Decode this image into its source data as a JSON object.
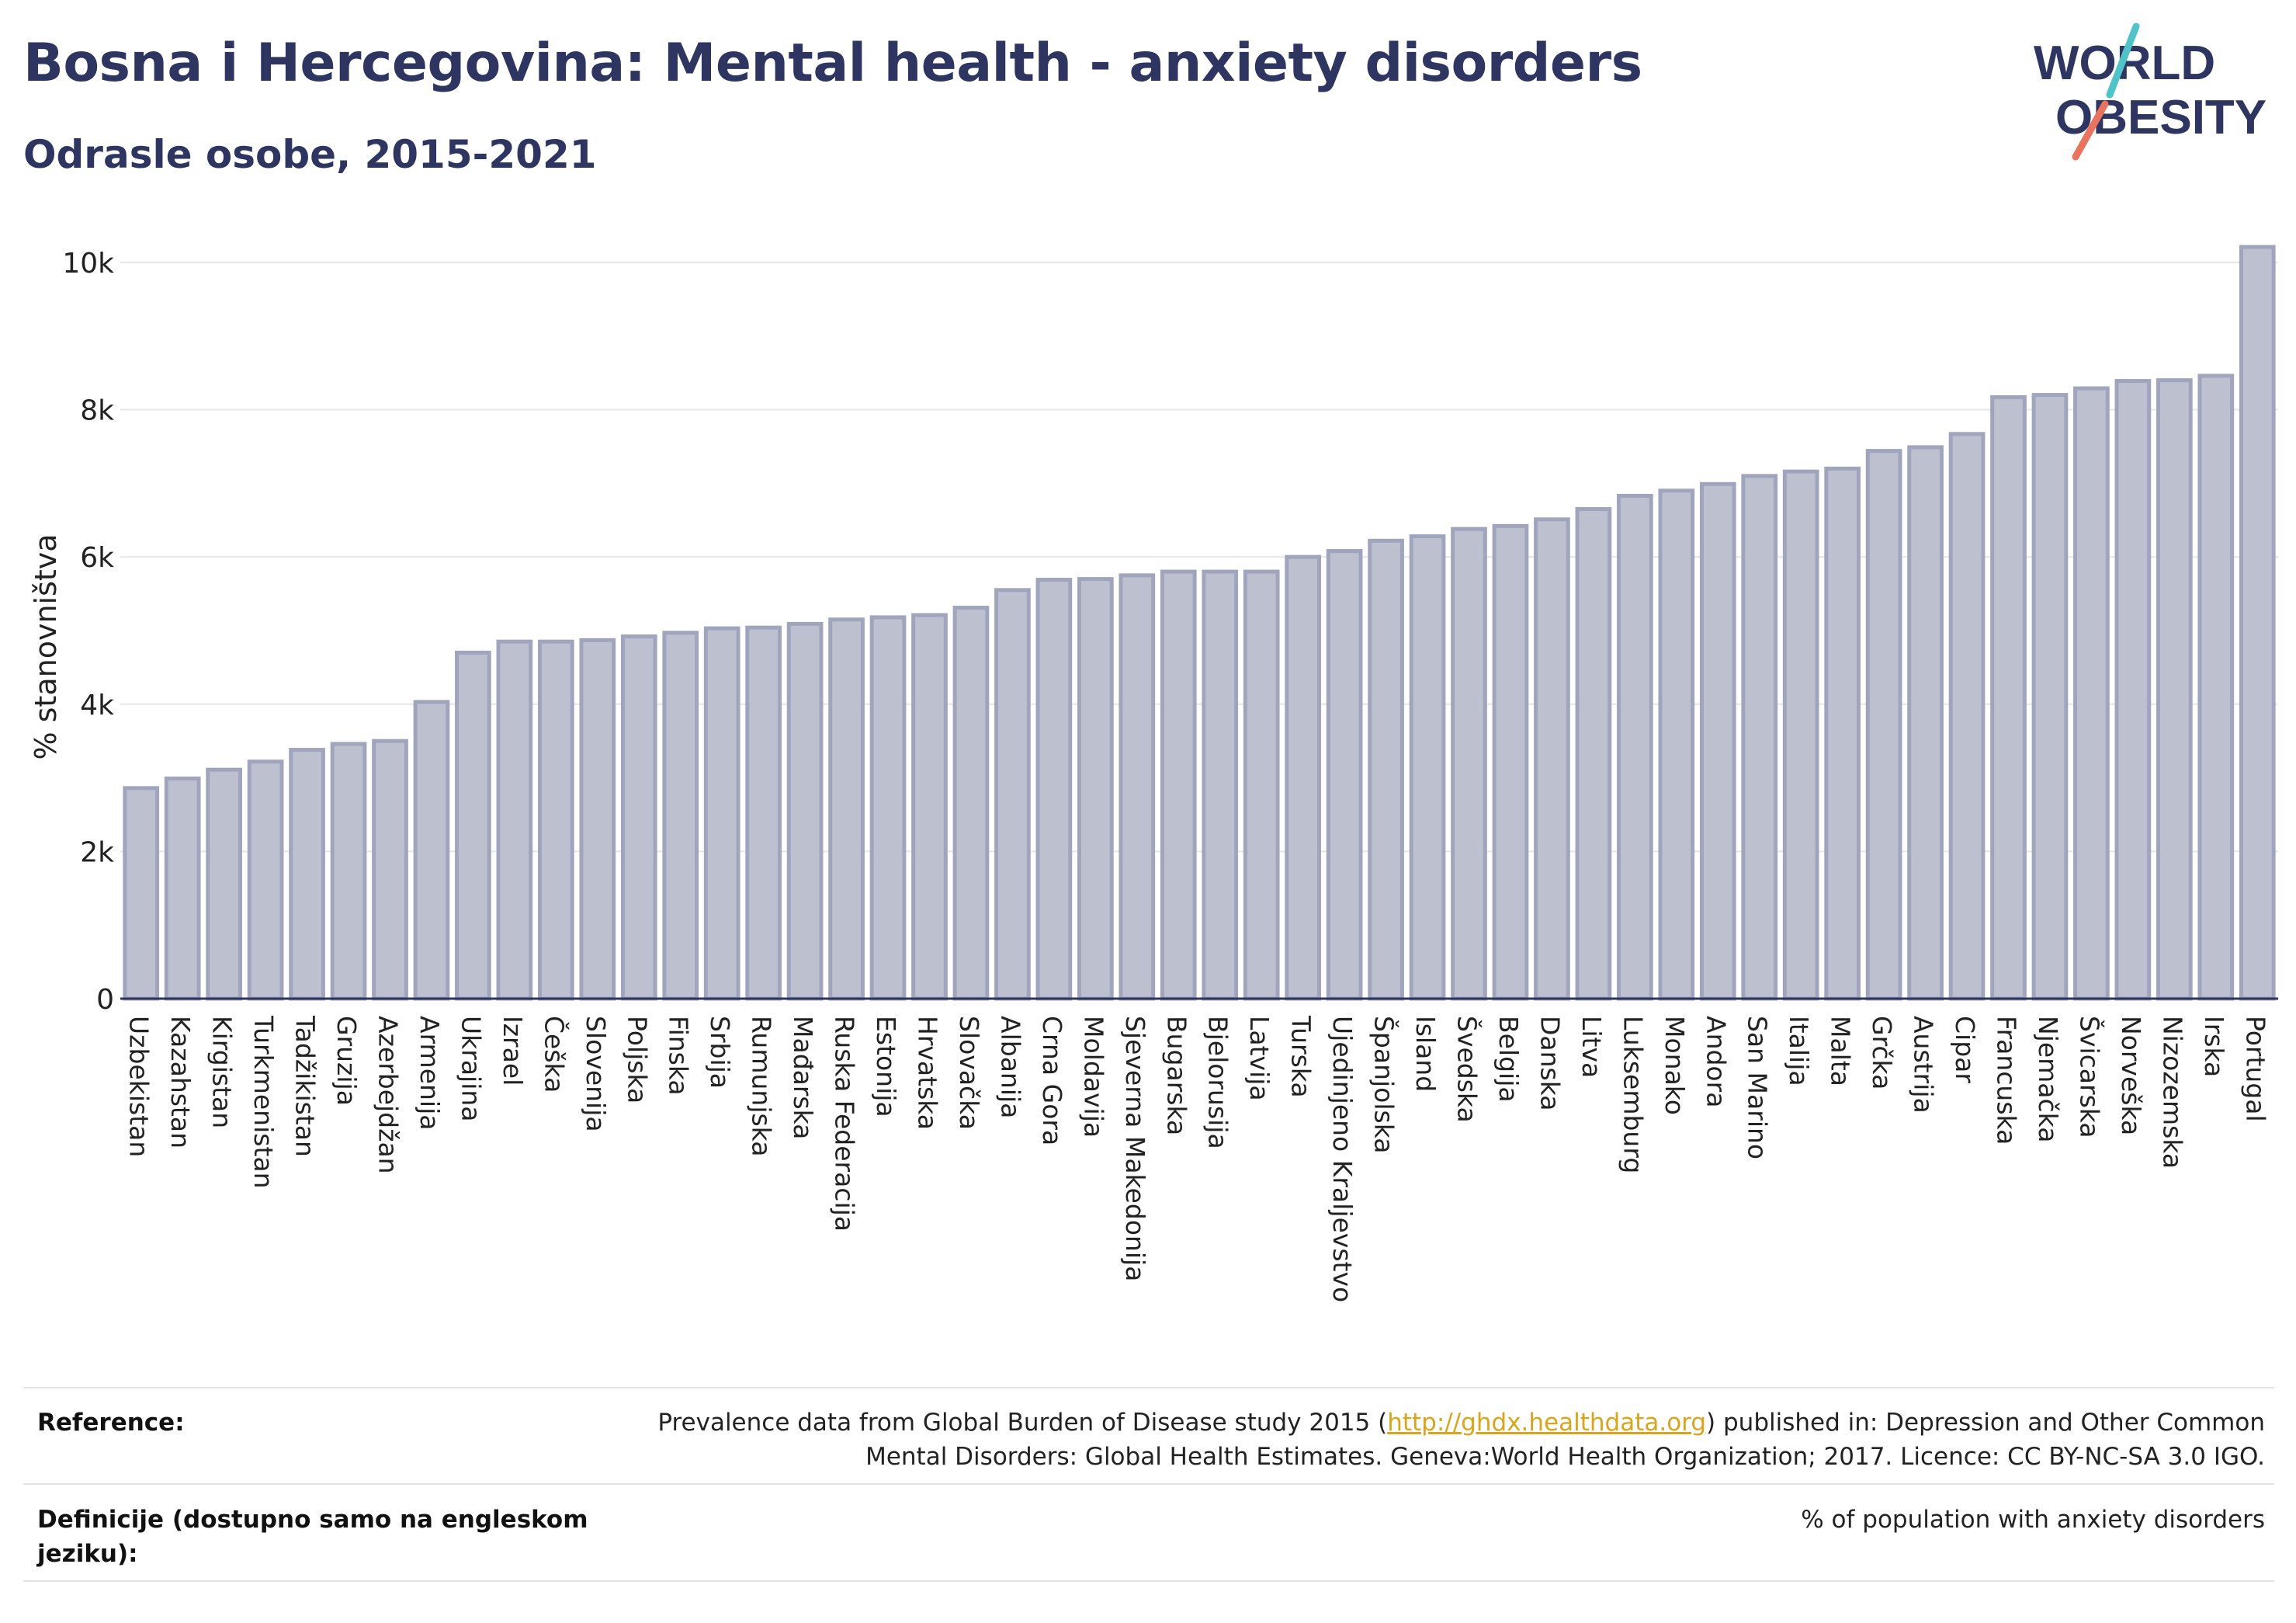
{
  "header": {
    "title": "Bosna i Hercegovina: Mental health - anxiety disorders",
    "subtitle": "Odrasle osobe, 2015-2021"
  },
  "logo": {
    "line1": "WORLD",
    "line2": "OBESITY",
    "color": "#2d3560",
    "accent1": "#4fc3c8",
    "accent2": "#e8735f"
  },
  "chart_data": {
    "type": "bar",
    "ylabel": "% stanovništva",
    "ylim": [
      0,
      10400
    ],
    "yticks": [
      0,
      2000,
      4000,
      6000,
      8000,
      10000
    ],
    "ytick_labels": [
      "0",
      "2k",
      "4k",
      "6k",
      "8k",
      "10k"
    ],
    "grid": true,
    "bar_color": "#bcc0cf",
    "bar_edge": "#a0a5bd",
    "categories": [
      "Uzbekistan",
      "Kazahstan",
      "Kirgistan",
      "Turkmenistan",
      "Tadžikistan",
      "Gruzija",
      "Azerbejdžan",
      "Armenija",
      "Ukrajina",
      "Izrael",
      "Češka",
      "Slovenija",
      "Poljska",
      "Finska",
      "Srbija",
      "Rumunjska",
      "Mađarska",
      "Ruska Federacija",
      "Estonija",
      "Hrvatska",
      "Slovačka",
      "Albanija",
      "Crna Gora",
      "Moldavija",
      "Sjeverna Makedonija",
      "Bugarska",
      "Bjelorusija",
      "Latvija",
      "Turska",
      "Ujedinjeno Kraljevstvo",
      "Španjolska",
      "Island",
      "Švedska",
      "Belgija",
      "Danska",
      "Litva",
      "Luksemburg",
      "Monako",
      "Andora",
      "San Marino",
      "Italija",
      "Malta",
      "Grčka",
      "Austrija",
      "Cipar",
      "Francuska",
      "Njemačka",
      "Švicarska",
      "Norveška",
      "Nizozemska",
      "Irska",
      "Portugal"
    ],
    "values": [
      2860,
      2990,
      3110,
      3220,
      3380,
      3460,
      3500,
      4030,
      4700,
      4850,
      4850,
      4870,
      4920,
      4970,
      5030,
      5040,
      5090,
      5150,
      5180,
      5210,
      5310,
      5550,
      5690,
      5700,
      5750,
      5800,
      5800,
      5800,
      6000,
      6080,
      6220,
      6280,
      6380,
      6420,
      6510,
      6650,
      6830,
      6900,
      6990,
      7100,
      7160,
      7200,
      7440,
      7490,
      7670,
      8170,
      8200,
      8290,
      8390,
      8400,
      8460,
      10210
    ]
  },
  "footer": {
    "reference_label": "Reference:",
    "reference_text_a": "Prevalence data from Global Burden of Disease study 2015 (",
    "reference_link": "http://ghdx.healthdata.org",
    "reference_text_b": ") published in: Depression and Other Common",
    "reference_text_c": "Mental Disorders: Global Health Estimates. Geneva:World Health Organization; 2017. Licence: CC BY-NC-SA 3.0 IGO.",
    "definition_label_1": "Definicije (dostupno samo na engleskom",
    "definition_label_2": "jeziku):",
    "definition_text": "% of population with anxiety disorders"
  }
}
